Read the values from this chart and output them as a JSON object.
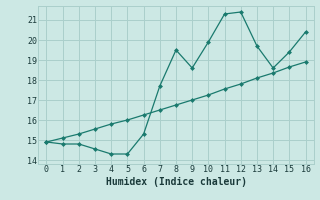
{
  "title": "",
  "xlabel": "Humidex (Indice chaleur)",
  "line1_x": [
    0,
    1,
    2,
    3,
    4,
    5,
    6,
    7,
    8,
    9,
    10,
    11,
    12,
    13,
    14,
    15,
    16
  ],
  "line1_y": [
    14.9,
    14.8,
    14.8,
    14.55,
    14.3,
    14.3,
    15.3,
    17.7,
    19.5,
    18.6,
    19.9,
    21.3,
    21.4,
    19.7,
    18.6,
    19.4,
    20.4
  ],
  "line2_x": [
    0,
    1,
    2,
    3,
    4,
    5,
    6,
    7,
    8,
    9,
    10,
    11,
    12,
    13,
    14,
    15,
    16
  ],
  "line2_y": [
    14.9,
    15.1,
    15.3,
    15.55,
    15.8,
    16.0,
    16.25,
    16.5,
    16.75,
    17.0,
    17.25,
    17.55,
    17.8,
    18.1,
    18.35,
    18.65,
    18.9
  ],
  "color": "#1a7a6e",
  "bg_color": "#cce8e4",
  "grid_color": "#aacfcb",
  "ylim": [
    13.8,
    21.7
  ],
  "xlim": [
    -0.5,
    16.5
  ],
  "yticks": [
    14,
    15,
    16,
    17,
    18,
    19,
    20,
    21
  ],
  "xticks": [
    0,
    1,
    2,
    3,
    4,
    5,
    6,
    7,
    8,
    9,
    10,
    11,
    12,
    13,
    14,
    15,
    16
  ],
  "marker": "D",
  "markersize": 2.5,
  "linewidth": 0.9,
  "tick_fontsize": 6.0,
  "xlabel_fontsize": 7.0
}
